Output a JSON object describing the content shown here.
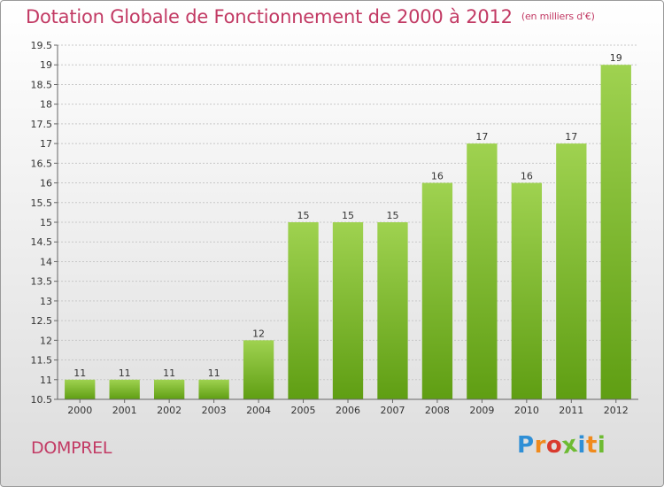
{
  "title": "Dotation Globale de Fonctionnement de 2000 à 2012",
  "subtitle": "(en milliers d'€)",
  "commune": "DOMPREL",
  "logo": "Proxiti",
  "colors": {
    "title": "#c23a64",
    "bar_top": "#9fd250",
    "bar_bottom": "#5f9e13",
    "logo_letters": [
      "#2f8fd6",
      "#f08a1c",
      "#d93a2e",
      "#6dbb32",
      "#2f8fd6",
      "#f08a1c",
      "#6dbb32"
    ]
  },
  "chart_data": {
    "type": "bar",
    "categories": [
      "2000",
      "2001",
      "2002",
      "2003",
      "2004",
      "2005",
      "2006",
      "2007",
      "2008",
      "2009",
      "2010",
      "2011",
      "2012"
    ],
    "values": [
      11,
      11,
      11,
      11,
      12,
      15,
      15,
      15,
      16,
      17,
      16,
      17,
      19
    ],
    "data_labels": [
      "11",
      "11",
      "11",
      "11",
      "12",
      "15",
      "15",
      "15",
      "16",
      "17",
      "16",
      "17",
      "19"
    ],
    "ylim": [
      10.5,
      19.5
    ],
    "yticks": [
      10.5,
      11,
      11.5,
      12,
      12.5,
      13,
      13.5,
      14,
      14.5,
      15,
      15.5,
      16,
      16.5,
      17,
      17.5,
      18,
      18.5,
      19,
      19.5
    ],
    "ytick_labels": [
      "10.5",
      "11",
      "11.5",
      "12",
      "12.5",
      "13",
      "13.5",
      "14",
      "14.5",
      "15",
      "15.5",
      "16",
      "16.5",
      "17",
      "17.5",
      "18",
      "18.5",
      "19",
      "19.5"
    ],
    "grid": true,
    "xlabel": "",
    "ylabel": ""
  }
}
